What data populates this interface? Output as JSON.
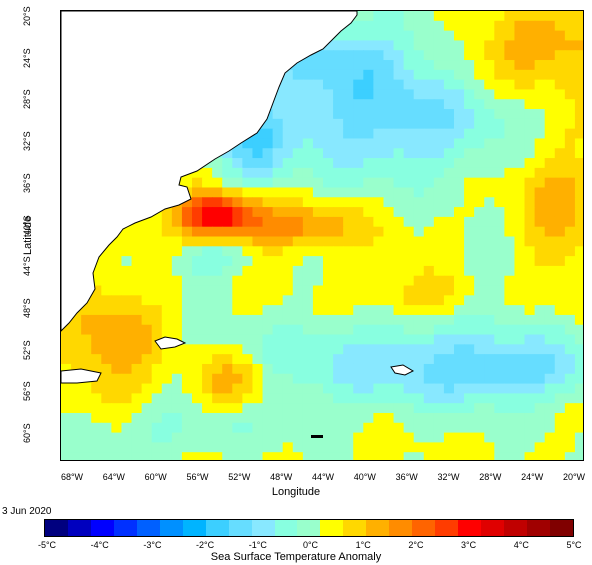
{
  "map": {
    "xlabel": "Longitude",
    "ylabel": "Latitude",
    "lat_ticks": [
      "20°S",
      "24°S",
      "28°S",
      "32°S",
      "36°S",
      "40°S",
      "44°S",
      "48°S",
      "52°S",
      "56°S",
      "60°S"
    ],
    "lon_ticks": [
      "68°W",
      "64°W",
      "60°W",
      "56°W",
      "52°W",
      "48°W",
      "44°W",
      "40°W",
      "36°W",
      "32°W",
      "28°W",
      "24°W",
      "20°W"
    ],
    "extent": {
      "lon_min": -70.5,
      "lon_max": -19.5,
      "lat_min": -64,
      "lat_max": -19.5
    },
    "islands": [
      "Falkland Islands",
      "South Georgia"
    ]
  },
  "date_label": "3 Jun 2020",
  "colorbar": {
    "title": "Sea Surface Temperature Anomaly",
    "ticks": [
      "-5°C",
      "-4°C",
      "-3°C",
      "-2°C",
      "-1°C",
      "0°C",
      "1°C",
      "2°C",
      "3°C",
      "4°C",
      "5°C"
    ],
    "colors": [
      "#00007f",
      "#0000bf",
      "#0000ff",
      "#0030ff",
      "#0060ff",
      "#0090ff",
      "#00b4ff",
      "#3ccfff",
      "#66ddff",
      "#88e8ff",
      "#88ffe0",
      "#99ffcc",
      "#ffff00",
      "#ffd800",
      "#ffb000",
      "#ff8c00",
      "#ff6400",
      "#ff3c00",
      "#ff0000",
      "#e00000",
      "#c00000",
      "#a00000",
      "#800000"
    ]
  },
  "anomaly_regions": [
    {
      "name": "Argentine Basin warm core",
      "anomaly_c": 3.0
    },
    {
      "name": "Subtropical central cold pool",
      "anomaly_c": -1.5
    },
    {
      "name": "Brazil coastal cold strip",
      "anomaly_c": -2.0
    },
    {
      "name": "Southern cold band",
      "anomaly_c": -1.0
    },
    {
      "name": "Patagonian shelf warm",
      "anomaly_c": 1.0
    },
    {
      "name": "Northeast warm",
      "anomaly_c": 1.0
    }
  ]
}
